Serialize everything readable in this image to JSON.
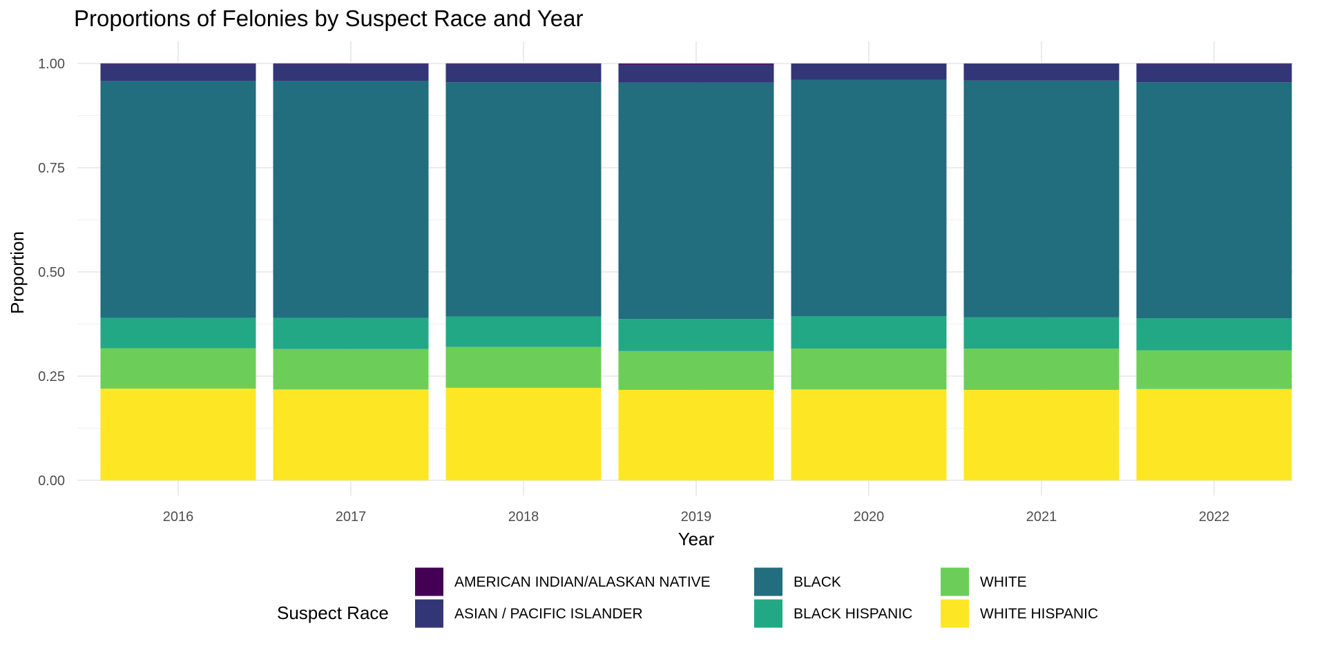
{
  "chart_data": {
    "type": "bar",
    "stacked": true,
    "title": "Proportions of Felonies by Suspect Race and Year",
    "xlabel": "Year",
    "ylabel": "Proportion",
    "ylim": [
      0,
      1
    ],
    "y_ticks": [
      "0.00",
      "0.25",
      "0.50",
      "0.75",
      "1.00"
    ],
    "grid": true,
    "legend_position": "bottom",
    "legend_title": "Suspect Race",
    "categories": [
      "2016",
      "2017",
      "2018",
      "2019",
      "2020",
      "2021",
      "2022"
    ],
    "series": [
      {
        "name": "WHITE HISPANIC",
        "color": "#FDE725",
        "values": [
          0.22,
          0.218,
          0.222,
          0.217,
          0.218,
          0.217,
          0.219
        ]
      },
      {
        "name": "WHITE",
        "color": "#6CCE59",
        "values": [
          0.097,
          0.097,
          0.098,
          0.093,
          0.098,
          0.099,
          0.093
        ]
      },
      {
        "name": "BLACK HISPANIC",
        "color": "#22A884",
        "values": [
          0.073,
          0.075,
          0.073,
          0.077,
          0.078,
          0.075,
          0.077
        ]
      },
      {
        "name": "BLACK",
        "color": "#226D7E",
        "values": [
          0.568,
          0.568,
          0.562,
          0.567,
          0.567,
          0.568,
          0.566
        ]
      },
      {
        "name": "ASIAN / PACIFIC ISLANDER",
        "color": "#323677",
        "values": [
          0.04,
          0.04,
          0.043,
          0.043,
          0.039,
          0.041,
          0.043
        ]
      },
      {
        "name": "AMERICAN INDIAN/ALASKAN NATIVE",
        "color": "#440154",
        "values": [
          0.002,
          0.002,
          0.002,
          0.003,
          0.0,
          0.0,
          0.002
        ]
      }
    ],
    "legend_order": [
      "AMERICAN INDIAN/ALASKAN NATIVE",
      "ASIAN / PACIFIC ISLANDER",
      "BLACK",
      "BLACK HISPANIC",
      "WHITE",
      "WHITE HISPANIC"
    ]
  }
}
